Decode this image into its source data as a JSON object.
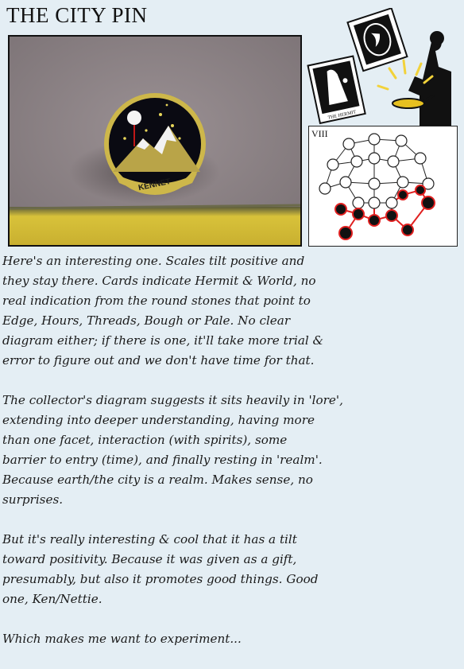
{
  "title": "THE CITY PIN",
  "photo": {
    "pin_text": "KENNET",
    "colors": {
      "felt": "#8f8588",
      "pin_bg": "#0a0a12",
      "pin_rim": "#c8b44a",
      "mountain": "#b8a24a",
      "gold_strip": "#d9c23a"
    }
  },
  "tarot": {
    "card_label": "THE HERMIT"
  },
  "diagram": {
    "numeral": "VIII",
    "highlight_color": "#e02020"
  },
  "paragraphs": [
    "Here's an interesting one.  Scales tilt positive and\nthey stay there.  Cards indicate Hermit & World, no\nreal indication from the round stones that point to\nEdge, Hours, Threads, Bough or Pale.  No clear\ndiagram either; if there is one, it'll take more trial &\nerror to figure out and we don't have time for that.",
    "The collector's diagram suggests it sits heavily in 'lore',\nextending into deeper understanding, having more\nthan one facet, interaction (with spirits), some\nbarrier to entry (time), and finally resting in 'realm'.\nBecause earth/the city is a realm.  Makes sense, no\nsurprises.",
    "But it's really interesting & cool that it has a tilt\ntoward positivity.  Because it was given as a gift,\npresumably, but also it promotes good things.  Good\none, Ken/Nettie.",
    "Which makes me want to experiment..."
  ]
}
